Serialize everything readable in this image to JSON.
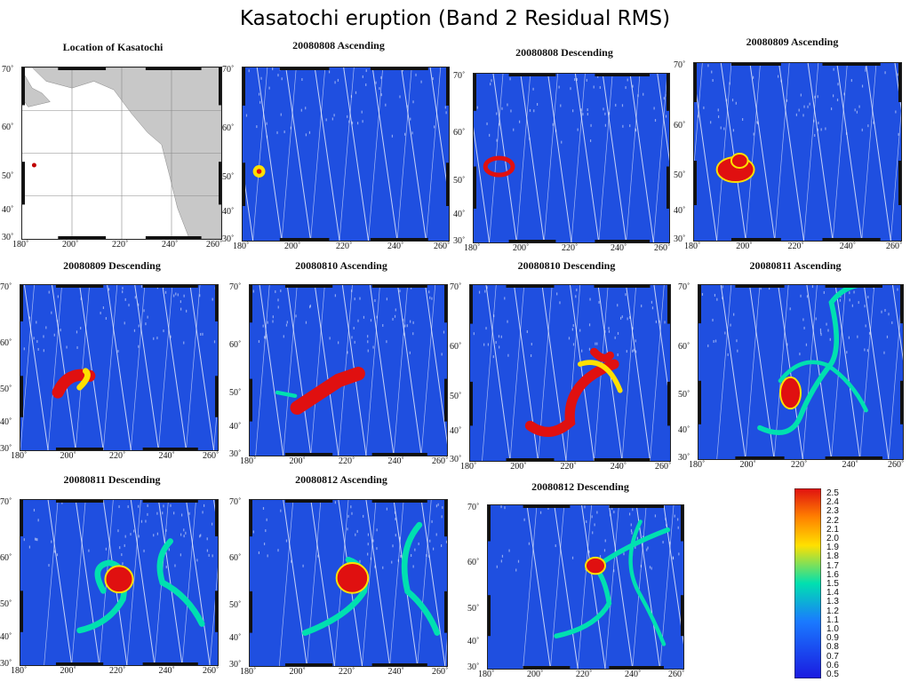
{
  "slide": {
    "title": "Kasatochi eruption (Band 2 Residual RMS)"
  },
  "axes": {
    "lat_ticks": [
      "70˚",
      "60˚",
      "50˚",
      "40˚",
      "30˚"
    ],
    "lon_ticks": [
      "180˚",
      "200˚",
      "220˚",
      "240˚",
      "260˚"
    ]
  },
  "panels": [
    {
      "title": "Location of Kasatochi",
      "kind": "location"
    },
    {
      "title": "20080808 Ascending",
      "plume": "a08"
    },
    {
      "title": "20080808 Descending",
      "plume": "d08"
    },
    {
      "title": "20080809 Ascending",
      "plume": "a09"
    },
    {
      "title": "20080809 Descending",
      "plume": "d09"
    },
    {
      "title": "20080810 Ascending",
      "plume": "a10"
    },
    {
      "title": "20080810 Descending",
      "plume": "d10"
    },
    {
      "title": "20080811 Ascending",
      "plume": "a11"
    },
    {
      "title": "20080811 Descending",
      "plume": "d11"
    },
    {
      "title": "20080812 Ascending",
      "plume": "a12"
    },
    {
      "title": "20080812 Descending",
      "plume": "d12"
    }
  ],
  "colorbar": {
    "labels": [
      "2.5",
      "2.4",
      "2.3",
      "2.2",
      "2.1",
      "2.0",
      "1.9",
      "1.8",
      "1.7",
      "1.6",
      "1.5",
      "1.4",
      "1.3",
      "1.2",
      "1.1",
      "1.0",
      "0.9",
      "0.8",
      "0.7",
      "0.6",
      "0.5"
    ],
    "colors": {
      "background": "#1f4fe0",
      "low": "#1a1ae0",
      "mid": "#00e0b0",
      "high": "#ffe000",
      "max": "#e01010"
    }
  }
}
